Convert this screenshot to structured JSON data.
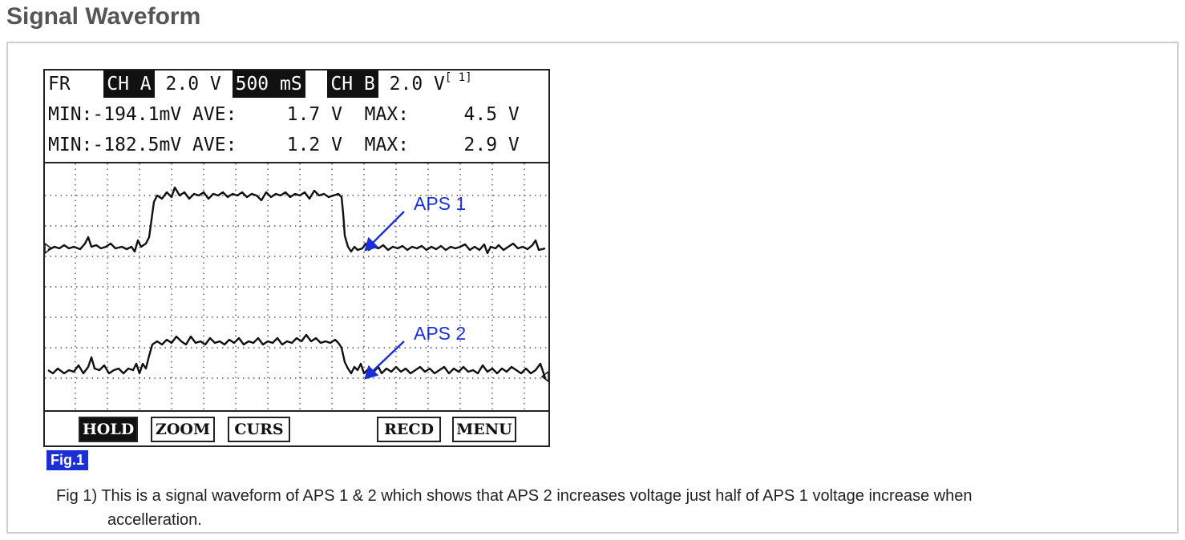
{
  "page_title": "Signal Waveform",
  "scope": {
    "header": {
      "mode": "FR",
      "ch_a_label": "CH A",
      "ch_a_scale": "2.0 V",
      "timebase": "500 mS",
      "ch_b_label": "CH B",
      "ch_b_scale": "2.0 V",
      "page_indicator": "[ 1]"
    },
    "stats_a": {
      "min_label": "MIN:",
      "min_value": "-194.1mV",
      "ave_label": "AVE:",
      "ave_value": "1.7 V",
      "max_label": "MAX:",
      "max_value": "4.5 V"
    },
    "stats_b": {
      "min_label": "MIN:",
      "min_value": "-182.5mV",
      "ave_label": "AVE:",
      "ave_value": "1.2 V",
      "max_label": "MAX:",
      "max_value": "2.9 V"
    },
    "annotations": {
      "aps1": "APS 1",
      "aps2": "APS 2",
      "color": "#1a2fd6"
    },
    "softkeys": {
      "hold": "HOLD",
      "zoom": "ZOOM",
      "curs": "CURS",
      "recd": "RECD",
      "menu": "MENU"
    }
  },
  "figure": {
    "badge": "Fig.1",
    "caption_line1": "Fig 1) This is a signal waveform of APS 1 & 2 which shows that APS 2 increases voltage just half of APS 1 voltage increase when",
    "caption_line2": "accelleration."
  }
}
